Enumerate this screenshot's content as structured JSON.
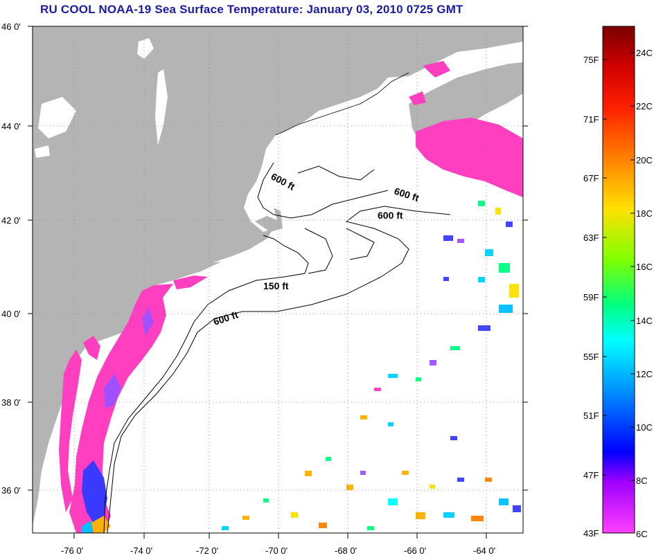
{
  "title": "RU COOL  NOAA-19  Sea Surface Temperature:  January 03, 2010 0725 GMT",
  "map": {
    "lat_labels": [
      "46 0'",
      "44 0'",
      "42 0'",
      "40 0'",
      "38 0'",
      "36 0'"
    ],
    "lon_labels": [
      "-76 0'",
      "-74 0'",
      "-72 0'",
      "-70 0'",
      "-68 0'",
      "-66 0'",
      "-64 0'"
    ],
    "contour_labels": [
      "600 ft",
      "600 ft",
      "600 ft",
      "150 ft",
      "600 ft"
    ],
    "colors": {
      "land": "#b4b4b4",
      "water": "#ffffff",
      "cold_sst": "#ff3fbf",
      "grid": "#808080"
    }
  },
  "colorbar": {
    "fahrenheit_labels": [
      "75F",
      "71F",
      "67F",
      "63F",
      "59F",
      "55F",
      "51F",
      "47F",
      "43F"
    ],
    "celsius_labels": [
      "24C",
      "22C",
      "20C",
      "18C",
      "16C",
      "14C",
      "12C",
      "10C",
      "8C",
      "6C"
    ],
    "gradient_colors": [
      "#7a0000",
      "#ff0000",
      "#ff8000",
      "#ffff00",
      "#00ff40",
      "#00ffff",
      "#0060ff",
      "#0000ff",
      "#a000ff",
      "#ff40c0",
      "#ff40ff"
    ]
  }
}
